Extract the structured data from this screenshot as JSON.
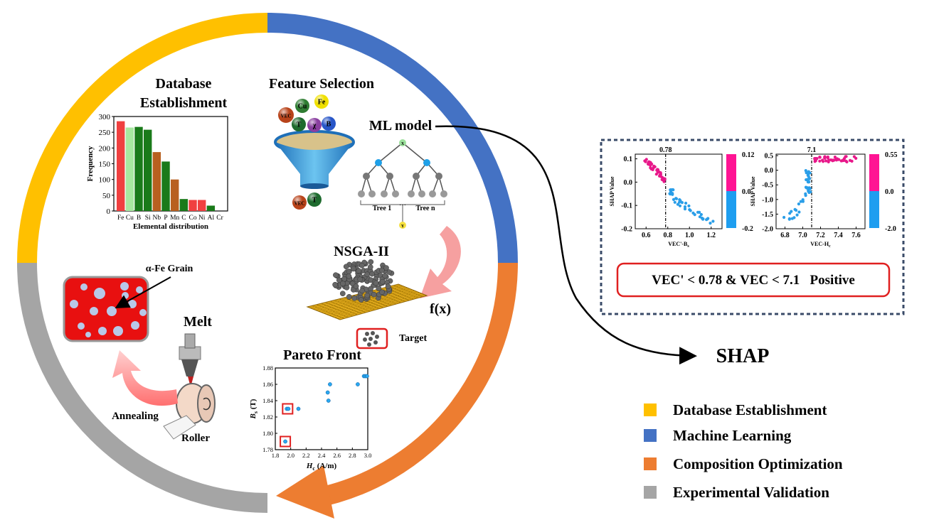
{
  "stages": {
    "database": {
      "title_line1": "Database",
      "title_line2": "Establishment"
    },
    "feature": {
      "title": "Feature Selection"
    },
    "ml": {
      "title": "ML model",
      "tree1": "Tree 1",
      "dots": "···",
      "treen": "Tree n",
      "root": "X",
      "leaf": "Y"
    },
    "nsga": {
      "title": "NSGA-II",
      "fx": "f(x)",
      "target": "Target"
    },
    "pareto": {
      "title": "Pareto Front"
    },
    "experiment": {
      "grain": "α-Fe Grain",
      "melt": "Melt",
      "annealing": "Annealing",
      "roller": "Roller"
    }
  },
  "feature_balls": [
    {
      "label": "VEC",
      "color": "#b8431a"
    },
    {
      "label": "Cu",
      "color": "#2f7d32"
    },
    {
      "label": "Fe",
      "color": "#f0e000"
    },
    {
      "label": "T",
      "color": "#1e6b2e"
    },
    {
      "label": "χ",
      "color": "#8a3fa0"
    },
    {
      "label": "B",
      "color": "#2856c8"
    },
    {
      "label": "VEC",
      "color": "#b8431a"
    },
    {
      "label": "T",
      "color": "#1e6b2e"
    }
  ],
  "chart_data": [
    {
      "type": "bar",
      "ylabel": "Frequency",
      "xlabel": "Elemental distribution",
      "ylim": [
        0,
        300
      ],
      "yticks": [
        0,
        50,
        100,
        150,
        200,
        250,
        300
      ],
      "categories": [
        "Fe",
        "Cu",
        "B",
        "Si",
        "Nb",
        "P",
        "Mn",
        "C",
        "Co",
        "Ni",
        "Al",
        "Cr"
      ],
      "values": [
        285,
        265,
        267,
        258,
        187,
        157,
        100,
        38,
        35,
        35,
        17,
        0
      ],
      "colors": [
        "#f04040",
        "#a8e8a0",
        "#1a7a1a",
        "#1a7a1a",
        "#b86020",
        "#1a7a1a",
        "#b86020",
        "#1a7a1a",
        "#f04040",
        "#f04040",
        "#1a7a1a",
        "#1a7a1a"
      ]
    },
    {
      "type": "scatter",
      "title": "Pareto Front",
      "xlabel": "H",
      "xlabel_sub": "c",
      "xlabel_unit": " (A/m)",
      "ylabel": "B",
      "ylabel_sub": "s",
      "ylabel_unit": " (T)",
      "xlim": [
        1.8,
        3.0
      ],
      "ylim": [
        1.78,
        1.88
      ],
      "xticks": [
        1.8,
        2.0,
        2.2,
        2.4,
        2.6,
        2.8,
        3.0
      ],
      "yticks": [
        1.78,
        1.8,
        1.82,
        1.84,
        1.86,
        1.88
      ],
      "points": [
        {
          "x": 1.93,
          "y": 1.79
        },
        {
          "x": 1.95,
          "y": 1.83
        },
        {
          "x": 1.97,
          "y": 1.83
        },
        {
          "x": 2.1,
          "y": 1.83
        },
        {
          "x": 2.48,
          "y": 1.85
        },
        {
          "x": 2.49,
          "y": 1.84
        },
        {
          "x": 2.51,
          "y": 1.86
        },
        {
          "x": 2.87,
          "y": 1.86
        },
        {
          "x": 2.95,
          "y": 1.87
        },
        {
          "x": 2.97,
          "y": 1.87
        },
        {
          "x": 2.99,
          "y": 1.87
        }
      ],
      "highlight": [
        {
          "x": 1.93,
          "y": 1.79
        },
        {
          "x": 1.96,
          "y": 1.83
        }
      ]
    },
    {
      "type": "scatter",
      "ylabel": "SHAP Value",
      "xlabel": "VEC'-B",
      "xlabel_sub": "s",
      "xlim": [
        0.5,
        1.3
      ],
      "ylim": [
        -0.2,
        0.12
      ],
      "xticks": [
        0.6,
        0.8,
        1.0,
        1.2
      ],
      "yticks": [
        0.1,
        0.0,
        -0.1,
        -0.2
      ],
      "threshold": 0.78,
      "threshold_label": "0.78",
      "colorbar_ticks": [
        "0.12",
        "0.0",
        "-0.2"
      ]
    },
    {
      "type": "scatter",
      "ylabel": "SHAP Value",
      "xlabel": "VEC-H",
      "xlabel_sub": "c",
      "xlim": [
        6.7,
        7.7
      ],
      "ylim": [
        -2.0,
        0.55
      ],
      "xticks": [
        6.8,
        7.0,
        7.2,
        7.4,
        7.6
      ],
      "yticks": [
        0.5,
        0.0,
        -0.5,
        -1.0,
        -1.5,
        -2.0
      ],
      "threshold": 7.1,
      "threshold_label": "7.1",
      "colorbar_ticks": [
        "0.55",
        "0.0",
        "-2.0"
      ]
    }
  ],
  "shap": {
    "rule": "VEC' < 0.78 & VEC < 7.1   Positive",
    "title": "SHAP"
  },
  "legend": [
    {
      "label": "Database Establishment",
      "color": "#ffc000"
    },
    {
      "label": "Machine Learning",
      "color": "#4472c4"
    },
    {
      "label": "Composition Optimization",
      "color": "#ed7d31"
    },
    {
      "label": "Experimental Validation",
      "color": "#a5a5a5"
    }
  ]
}
